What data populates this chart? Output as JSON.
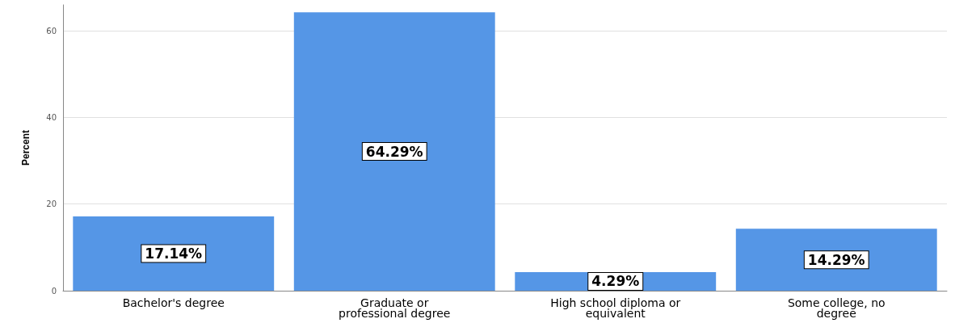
{
  "chart_data": {
    "type": "bar",
    "ylabel": "Percent",
    "categories": [
      "Bachelor's degree",
      "Graduate or\nprofessional degree",
      "High school diploma or\nequivalent",
      "Some college, no\ndegree"
    ],
    "values": [
      17.14,
      64.29,
      4.29,
      14.29
    ],
    "value_labels": [
      "17.14%",
      "64.29%",
      "4.29%",
      "14.29%"
    ],
    "color": "#5596e6",
    "ylim": [
      0,
      66
    ],
    "yticks": [
      0,
      20,
      40,
      60
    ],
    "grid": "y"
  }
}
